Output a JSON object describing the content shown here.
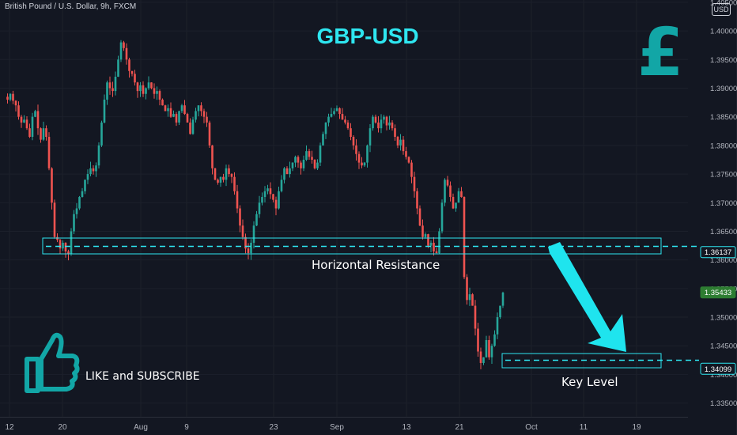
{
  "header": {
    "symbol_text": "British Pound / U.S. Dollar, 9h, FXCM",
    "currency_badge": "USD"
  },
  "annotations": {
    "title": "GBP-USD",
    "currency_symbol": "£",
    "resistance_label": "Horizontal Resistance",
    "key_level_label": "Key Level",
    "cta_text": "LIKE and SUBSCRIBE",
    "cta_icon": "thumbs-up-icon"
  },
  "colors": {
    "background": "#131722",
    "up": "#26a69a",
    "down": "#ef5350",
    "accent": "#2ee6f0",
    "axis_text": "#b2b5be"
  },
  "chart_data": {
    "type": "candlestick",
    "title": "GBP-USD",
    "symbol": "British Pound / U.S. Dollar",
    "interval": "9h",
    "source": "FXCM",
    "y_axis": {
      "range": [
        1.3326,
        1.4054
      ],
      "ticks": [
        "1.33500",
        "1.34000",
        "1.34500",
        "1.35000",
        "1.35500",
        "1.36000",
        "1.36500",
        "1.37000",
        "1.37500",
        "1.38000",
        "1.38500",
        "1.39000",
        "1.39500",
        "1.40000",
        "1.40500"
      ]
    },
    "x_axis": {
      "ticks": [
        {
          "label": "12",
          "x": 12
        },
        {
          "label": "20",
          "x": 79
        },
        {
          "label": "Aug",
          "x": 178
        },
        {
          "label": "9",
          "x": 236
        },
        {
          "label": "23",
          "x": 346
        },
        {
          "label": "Sep",
          "x": 426
        },
        {
          "label": "13",
          "x": 514
        },
        {
          "label": "21",
          "x": 581
        },
        {
          "label": "Oct",
          "x": 672
        },
        {
          "label": "11",
          "x": 738
        },
        {
          "label": "19",
          "x": 805
        }
      ]
    },
    "price_labels": [
      {
        "value": "1.36137",
        "price": 1.36137,
        "style": "outline"
      },
      {
        "value": "1.35433",
        "price": 1.35433,
        "style": "green"
      },
      {
        "value": "1.34099",
        "price": 1.34099,
        "style": "outline"
      }
    ],
    "levels": [
      {
        "name": "Horizontal Resistance",
        "price": 1.36137,
        "zone": [
          1.36,
          1.3625
        ]
      },
      {
        "name": "Key Level",
        "price": 1.34099,
        "zone": [
          1.3394,
          1.3418
        ]
      }
    ],
    "closes": [
      1.3885,
      1.388,
      1.389,
      1.3878,
      1.387,
      1.385,
      1.384,
      1.3845,
      1.383,
      1.3815,
      1.385,
      1.386,
      1.383,
      1.381,
      1.383,
      1.3815,
      1.376,
      1.37,
      1.364,
      1.3635,
      1.362,
      1.363,
      1.3615,
      1.361,
      1.365,
      1.368,
      1.369,
      1.371,
      1.372,
      1.374,
      1.375,
      1.376,
      1.3755,
      1.3765,
      1.38,
      1.384,
      1.388,
      1.391,
      1.39,
      1.3895,
      1.392,
      1.395,
      1.398,
      1.397,
      1.395,
      1.393,
      1.3925,
      1.391,
      1.3895,
      1.3905,
      1.389,
      1.39,
      1.391,
      1.39,
      1.389,
      1.3895,
      1.388,
      1.387,
      1.386,
      1.3865,
      1.385,
      1.3855,
      1.384,
      1.386,
      1.387,
      1.3855,
      1.384,
      1.382,
      1.3845,
      1.386,
      1.387,
      1.386,
      1.385,
      1.384,
      1.38,
      1.376,
      1.374,
      1.3735,
      1.3745,
      1.374,
      1.376,
      1.375,
      1.3745,
      1.372,
      1.369,
      1.366,
      1.364,
      1.362,
      1.3612,
      1.363,
      1.366,
      1.368,
      1.37,
      1.371,
      1.372,
      1.3725,
      1.3715,
      1.3705,
      1.369,
      1.372,
      1.374,
      1.376,
      1.375,
      1.376,
      1.377,
      1.378,
      1.377,
      1.376,
      1.3775,
      1.379,
      1.378,
      1.3775,
      1.376,
      1.377,
      1.38,
      1.382,
      1.384,
      1.385,
      1.3855,
      1.386,
      1.3865,
      1.3855,
      1.3845,
      1.384,
      1.383,
      1.3815,
      1.38,
      1.3785,
      1.377,
      1.3765,
      1.377,
      1.38,
      1.383,
      1.385,
      1.384,
      1.383,
      1.3845,
      1.385,
      1.3835,
      1.384,
      1.383,
      1.3815,
      1.38,
      1.381,
      1.379,
      1.378,
      1.377,
      1.3745,
      1.372,
      1.369,
      1.366,
      1.364,
      1.3645,
      1.3625,
      1.363,
      1.3615,
      1.3612,
      1.365,
      1.37,
      1.374,
      1.373,
      1.371,
      1.369,
      1.37,
      1.372,
      1.371,
      1.357,
      1.353,
      1.354,
      1.352,
      1.348,
      1.344,
      1.342,
      1.343,
      1.346,
      1.343,
      1.345,
      1.347,
      1.35,
      1.352,
      1.3543
    ]
  }
}
